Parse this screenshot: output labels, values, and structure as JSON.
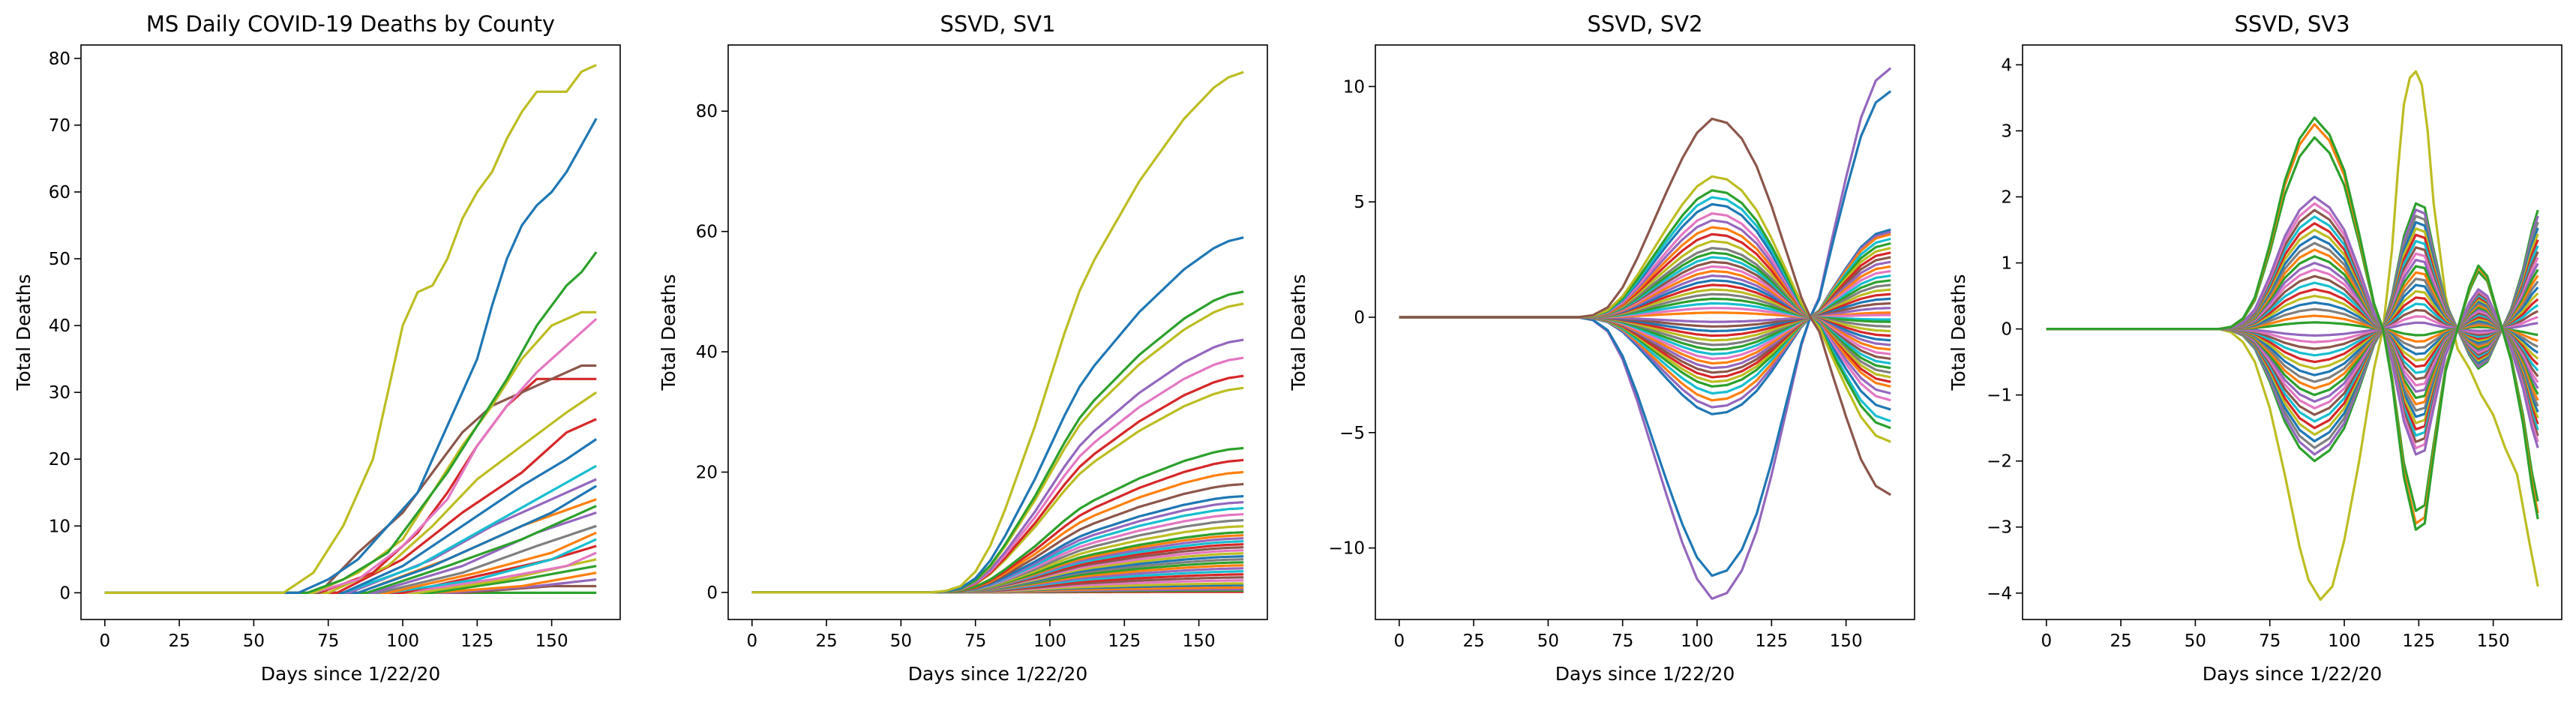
{
  "palette": [
    "#1f77b4",
    "#ff7f0e",
    "#2ca02c",
    "#d62728",
    "#9467bd",
    "#8c564b",
    "#e377c2",
    "#7f7f7f",
    "#bcbd22",
    "#17becf"
  ],
  "chart_data": [
    {
      "type": "line",
      "title": "MS Daily COVID-19 Deaths by County",
      "xlabel": "Days since 1/22/20",
      "ylabel": "Total Deaths",
      "xlim": [
        -8,
        173
      ],
      "ylim": [
        -4,
        82
      ],
      "xticks": [
        0,
        25,
        50,
        75,
        100,
        125,
        150
      ],
      "yticks": [
        0,
        10,
        20,
        30,
        40,
        50,
        60,
        70,
        80
      ],
      "grid": false,
      "legend": "none",
      "series": [
        {
          "color": "#bcbd22",
          "x": [
            0,
            60,
            70,
            80,
            90,
            95,
            100,
            105,
            110,
            115,
            120,
            125,
            130,
            135,
            140,
            145,
            150,
            155,
            160,
            165
          ],
          "y": [
            0,
            0,
            3,
            10,
            20,
            30,
            40,
            45,
            46,
            50,
            56,
            60,
            63,
            68,
            72,
            75,
            75,
            75,
            78,
            79
          ]
        },
        {
          "color": "#1f77b4",
          "x": [
            0,
            65,
            75,
            85,
            95,
            105,
            110,
            115,
            120,
            125,
            130,
            135,
            140,
            145,
            150,
            155,
            160,
            165
          ],
          "y": [
            0,
            0,
            2,
            5,
            10,
            15,
            20,
            25,
            30,
            35,
            43,
            50,
            55,
            58,
            60,
            63,
            67,
            71
          ]
        },
        {
          "color": "#2ca02c",
          "x": [
            0,
            68,
            80,
            95,
            105,
            115,
            125,
            135,
            145,
            155,
            160,
            165
          ],
          "y": [
            0,
            0,
            2,
            6,
            12,
            18,
            25,
            32,
            40,
            46,
            48,
            51
          ]
        },
        {
          "color": "#bcbd22",
          "x": [
            0,
            70,
            85,
            100,
            110,
            120,
            130,
            140,
            150,
            160,
            165
          ],
          "y": [
            0,
            0,
            3,
            8,
            15,
            22,
            28,
            35,
            40,
            42,
            42
          ]
        },
        {
          "color": "#e377c2",
          "x": [
            0,
            70,
            85,
            100,
            115,
            125,
            135,
            145,
            155,
            165
          ],
          "y": [
            0,
            0,
            2,
            7,
            14,
            22,
            28,
            33,
            37,
            41
          ]
        },
        {
          "color": "#8c564b",
          "x": [
            0,
            72,
            85,
            100,
            110,
            120,
            130,
            140,
            150,
            160,
            165
          ],
          "y": [
            0,
            0,
            6,
            12,
            18,
            24,
            28,
            30,
            32,
            34,
            34
          ]
        },
        {
          "color": "#d62728",
          "x": [
            0,
            72,
            90,
            105,
            115,
            125,
            135,
            145,
            155,
            165
          ],
          "y": [
            0,
            0,
            3,
            9,
            15,
            22,
            28,
            32,
            32,
            32
          ]
        },
        {
          "color": "#bcbd22",
          "x": [
            0,
            75,
            95,
            110,
            125,
            140,
            155,
            165
          ],
          "y": [
            0,
            0,
            4,
            10,
            17,
            22,
            27,
            30
          ]
        },
        {
          "color": "#d62728",
          "x": [
            0,
            78,
            100,
            120,
            140,
            155,
            165
          ],
          "y": [
            0,
            0,
            5,
            12,
            18,
            24,
            26
          ]
        },
        {
          "color": "#1f77b4",
          "x": [
            0,
            80,
            100,
            120,
            140,
            155,
            165
          ],
          "y": [
            0,
            0,
            4,
            10,
            16,
            20,
            23
          ]
        },
        {
          "color": "#17becf",
          "x": [
            0,
            80,
            105,
            125,
            145,
            165
          ],
          "y": [
            0,
            0,
            4,
            9,
            14,
            19
          ]
        },
        {
          "color": "#9467bd",
          "x": [
            0,
            82,
            110,
            130,
            150,
            165
          ],
          "y": [
            0,
            0,
            5,
            10,
            14,
            17
          ]
        },
        {
          "color": "#1f77b4",
          "x": [
            0,
            85,
            110,
            130,
            150,
            165
          ],
          "y": [
            0,
            0,
            4,
            8,
            12,
            16
          ]
        },
        {
          "color": "#ff7f0e",
          "x": [
            0,
            85,
            115,
            140,
            165
          ],
          "y": [
            0,
            0,
            5,
            10,
            14
          ]
        },
        {
          "color": "#2ca02c",
          "x": [
            0,
            88,
            115,
            140,
            165
          ],
          "y": [
            0,
            0,
            4,
            8,
            13
          ]
        },
        {
          "color": "#9467bd",
          "x": [
            0,
            90,
            120,
            145,
            165
          ],
          "y": [
            0,
            0,
            4,
            9,
            12
          ]
        },
        {
          "color": "#7f7f7f",
          "x": [
            0,
            92,
            120,
            145,
            165
          ],
          "y": [
            0,
            0,
            3,
            7,
            10
          ]
        },
        {
          "color": "#ff7f0e",
          "x": [
            0,
            95,
            125,
            150,
            165
          ],
          "y": [
            0,
            0,
            3,
            6,
            9
          ]
        },
        {
          "color": "#17becf",
          "x": [
            0,
            95,
            125,
            150,
            165
          ],
          "y": [
            0,
            0,
            2,
            5,
            8
          ]
        },
        {
          "color": "#d62728",
          "x": [
            0,
            100,
            130,
            150,
            165
          ],
          "y": [
            0,
            0,
            3,
            5,
            7
          ]
        },
        {
          "color": "#e377c2",
          "x": [
            0,
            100,
            130,
            155,
            165
          ],
          "y": [
            0,
            0,
            2,
            4,
            6
          ]
        },
        {
          "color": "#bcbd22",
          "x": [
            0,
            105,
            135,
            155,
            165
          ],
          "y": [
            0,
            0,
            2,
            4,
            5
          ]
        },
        {
          "color": "#2ca02c",
          "x": [
            0,
            110,
            140,
            165
          ],
          "y": [
            0,
            0,
            2,
            4
          ]
        },
        {
          "color": "#ff7f0e",
          "x": [
            0,
            110,
            140,
            165
          ],
          "y": [
            0,
            0,
            1,
            3
          ]
        },
        {
          "color": "#9467bd",
          "x": [
            0,
            115,
            145,
            165
          ],
          "y": [
            0,
            0,
            1,
            2
          ]
        },
        {
          "color": "#8c564b",
          "x": [
            0,
            120,
            150,
            165
          ],
          "y": [
            0,
            0,
            1,
            1
          ]
        },
        {
          "color": "#2ca02c",
          "x": [
            0,
            165
          ],
          "y": [
            0,
            0
          ]
        }
      ]
    },
    {
      "type": "line",
      "title": "SSVD, SV1",
      "xlabel": "Days since 1/22/20",
      "ylabel": "Total Deaths",
      "xlim": [
        -8,
        173
      ],
      "ylim": [
        -4.5,
        91
      ],
      "xticks": [
        0,
        25,
        50,
        75,
        100,
        125,
        150
      ],
      "yticks": [
        0,
        20,
        40,
        60,
        80
      ],
      "grid": false,
      "legend": "none",
      "scale_factors": [
        86.5,
        59,
        50,
        48,
        42,
        39,
        36,
        34,
        24,
        22,
        20,
        18,
        16,
        15,
        14,
        13,
        12,
        11,
        10,
        9.5,
        9,
        8.5,
        8,
        7.5,
        7,
        6.5,
        6,
        5.5,
        5,
        4.5,
        4,
        3.5,
        3,
        2.5,
        2,
        1.5,
        1.2,
        0.8,
        0.5,
        0.3,
        0.1
      ],
      "series_colors": [
        "#bcbd22",
        "#1f77b4",
        "#2ca02c",
        "#bcbd22",
        "#9467bd",
        "#e377c2",
        "#d62728",
        "#bcbd22",
        "#2ca02c",
        "#d62728",
        "#ff7f0e",
        "#8c564b",
        "#1f77b4",
        "#9467bd",
        "#17becf",
        "#e377c2",
        "#7f7f7f",
        "#bcbd22",
        "#2ca02c",
        "#ff7f0e",
        "#9467bd",
        "#17becf",
        "#d62728",
        "#8c564b",
        "#e377c2",
        "#bcbd22",
        "#1f77b4",
        "#7f7f7f",
        "#2ca02c",
        "#ff7f0e",
        "#9467bd",
        "#17becf",
        "#d62728",
        "#8c564b",
        "#e377c2",
        "#bcbd22",
        "#1f77b4",
        "#ff7f0e",
        "#9467bd",
        "#2ca02c",
        "#d62728"
      ],
      "profile_x": [
        0,
        60,
        65,
        70,
        75,
        80,
        85,
        90,
        95,
        100,
        105,
        110,
        115,
        120,
        125,
        130,
        135,
        140,
        145,
        150,
        155,
        160,
        165
      ],
      "profile_y": [
        0,
        0,
        0.003,
        0.012,
        0.04,
        0.09,
        0.16,
        0.24,
        0.32,
        0.41,
        0.5,
        0.58,
        0.64,
        0.69,
        0.74,
        0.79,
        0.83,
        0.87,
        0.91,
        0.94,
        0.97,
        0.99,
        1.0
      ]
    },
    {
      "type": "line",
      "title": "SSVD, SV2",
      "xlabel": "Days since 1/22/20",
      "ylabel": "Total Deaths",
      "xlim": [
        -8,
        173
      ],
      "ylim": [
        -13.1,
        11.8
      ],
      "xticks": [
        0,
        25,
        50,
        75,
        100,
        125,
        150
      ],
      "yticks": [
        -10,
        -5,
        0,
        5,
        10
      ],
      "grid": false,
      "legend": "none",
      "scale_factors": [
        8.6,
        6.1,
        5.5,
        5.2,
        4.9,
        4.5,
        4.2,
        3.9,
        3.6,
        3.3,
        3.0,
        2.8,
        2.6,
        2.4,
        2.2,
        2.0,
        1.8,
        1.6,
        1.4,
        1.2,
        1.0,
        0.8,
        0.6,
        0.4,
        0.2,
        -0.2,
        -0.4,
        -0.6,
        -0.8,
        -1.0,
        -1.2,
        -1.4,
        -1.6,
        -1.8,
        -2.0,
        -2.2,
        -2.4,
        -2.6,
        -2.8,
        -3.0,
        -3.3,
        -3.6,
        -3.9,
        -4.2,
        -11.2,
        -12.2
      ],
      "tail_factors": [
        -7.7,
        -5.4,
        -4.8,
        -4.5,
        -4.0,
        -3.6,
        -3.3,
        -3.0,
        -2.8,
        -2.6,
        -2.4,
        -2.2,
        -2.0,
        -1.8,
        -1.6,
        -1.4,
        -1.2,
        -1.0,
        -0.8,
        -0.6,
        -0.4,
        -0.2,
        -0.1,
        0.1,
        0.2,
        0.4,
        0.6,
        0.8,
        1.0,
        1.2,
        1.4,
        1.6,
        1.8,
        2.0,
        2.2,
        2.4,
        2.6,
        2.8,
        3.0,
        3.2,
        3.4,
        3.6,
        3.7,
        3.8,
        9.8,
        10.8
      ],
      "series_colors": [
        "#8c564b",
        "#bcbd22",
        "#2ca02c",
        "#17becf",
        "#1f77b4",
        "#e377c2",
        "#9467bd",
        "#ff7f0e",
        "#d62728",
        "#bcbd22",
        "#7f7f7f",
        "#2ca02c",
        "#17becf",
        "#8c564b",
        "#e377c2",
        "#ff7f0e",
        "#9467bd",
        "#1f77b4",
        "#d62728",
        "#bcbd22",
        "#7f7f7f",
        "#2ca02c",
        "#17becf",
        "#e377c2",
        "#ff7f0e",
        "#9467bd",
        "#8c564b",
        "#1f77b4",
        "#d62728",
        "#bcbd22",
        "#7f7f7f",
        "#2ca02c",
        "#17becf",
        "#e377c2",
        "#ff7f0e",
        "#9467bd",
        "#8c564b",
        "#d62728",
        "#bcbd22",
        "#2ca02c",
        "#17becf",
        "#ff7f0e",
        "#9467bd",
        "#1f77b4",
        "#1f77b4",
        "#9467bd"
      ],
      "profile_x": [
        0,
        60,
        65,
        70,
        75,
        80,
        85,
        90,
        95,
        100,
        105,
        110,
        115,
        120,
        125,
        130,
        135,
        138,
        141,
        145,
        150,
        155,
        160,
        165
      ],
      "profile_y": [
        0,
        0,
        0.01,
        0.05,
        0.15,
        0.3,
        0.47,
        0.64,
        0.8,
        0.93,
        1.0,
        0.98,
        0.9,
        0.76,
        0.56,
        0.33,
        0.1,
        0,
        "tail",
        0,
        0,
        0,
        0,
        0
      ],
      "tail_profile_x": [
        138,
        141,
        145,
        150,
        155,
        160,
        165
      ],
      "tail_profile_y": [
        0,
        0.08,
        0.3,
        0.56,
        0.8,
        0.95,
        1.0
      ]
    },
    {
      "type": "line",
      "title": "SSVD, SV3",
      "xlabel": "Days since 1/22/20",
      "ylabel": "Total Deaths",
      "xlim": [
        -8,
        173
      ],
      "ylim": [
        -4.4,
        4.3
      ],
      "xticks": [
        0,
        25,
        50,
        75,
        100,
        125,
        150
      ],
      "yticks": [
        -4,
        -3,
        -2,
        -1,
        0,
        1,
        2,
        3,
        4
      ],
      "grid": false,
      "legend": "none",
      "series_factors": [
        3.2,
        3.1,
        2.9,
        2.0,
        1.9,
        1.8,
        1.7,
        1.6,
        1.5,
        1.4,
        1.3,
        1.2,
        1.1,
        1.0,
        0.9,
        0.8,
        0.7,
        0.6,
        0.5,
        0.4,
        0.3,
        0.2,
        0.1,
        -0.1,
        -0.2,
        -0.3,
        -0.4,
        -0.5,
        -0.6,
        -0.7,
        -0.8,
        -0.9,
        -1.0,
        -1.1,
        -1.2,
        -1.3,
        -1.4,
        -1.5,
        -1.6,
        -1.7,
        -1.8,
        -1.9,
        -2.0
      ],
      "series_colors": [
        "#2ca02c",
        "#ff7f0e",
        "#2ca02c",
        "#9467bd",
        "#e377c2",
        "#8c564b",
        "#17becf",
        "#d62728",
        "#bcbd22",
        "#1f77b4",
        "#7f7f7f",
        "#ff7f0e",
        "#2ca02c",
        "#9467bd",
        "#e377c2",
        "#8c564b",
        "#17becf",
        "#d62728",
        "#bcbd22",
        "#1f77b4",
        "#7f7f7f",
        "#ff7f0e",
        "#2ca02c",
        "#9467bd",
        "#e377c2",
        "#8c564b",
        "#17becf",
        "#d62728",
        "#bcbd22",
        "#1f77b4",
        "#7f7f7f",
        "#ff7f0e",
        "#2ca02c",
        "#9467bd",
        "#e377c2",
        "#8c564b",
        "#17becf",
        "#d62728",
        "#bcbd22",
        "#1f77b4",
        "#7f7f7f",
        "#9467bd",
        "#2ca02c"
      ],
      "profile_x": [
        0,
        58,
        62,
        66,
        70,
        75,
        80,
        85,
        90,
        95,
        100,
        105,
        110,
        113,
        116,
        120,
        124,
        127,
        130,
        134,
        138,
        142,
        145,
        148,
        152,
        156,
        160,
        163,
        165
      ],
      "profile_y": [
        0,
        0,
        0.01,
        0.05,
        0.15,
        0.4,
        0.7,
        0.9,
        1.0,
        0.92,
        0.75,
        0.45,
        0.12,
        0,
        -0.25,
        -0.7,
        -0.95,
        -0.92,
        -0.6,
        -0.2,
        0.0,
        0.2,
        0.3,
        0.25,
        0.05,
        -0.15,
        -0.45,
        -0.75,
        -0.9
      ],
      "outlier": {
        "color": "#bcbd22",
        "x": [
          0,
          58,
          62,
          66,
          70,
          75,
          80,
          85,
          88,
          92,
          96,
          100,
          105,
          110,
          113,
          116,
          118,
          120,
          122,
          124,
          126,
          128,
          130,
          134,
          138,
          142,
          146,
          150,
          154,
          158,
          162,
          165
        ],
        "y": [
          0,
          0,
          -0.05,
          -0.2,
          -0.5,
          -1.2,
          -2.2,
          -3.3,
          -3.8,
          -4.1,
          -3.9,
          -3.2,
          -2.0,
          -0.6,
          0,
          1.2,
          2.4,
          3.4,
          3.8,
          3.9,
          3.7,
          3.0,
          1.9,
          0.5,
          -0.3,
          -0.6,
          -1.0,
          -1.3,
          -1.8,
          -2.2,
          -3.2,
          -3.9
        ]
      }
    }
  ]
}
